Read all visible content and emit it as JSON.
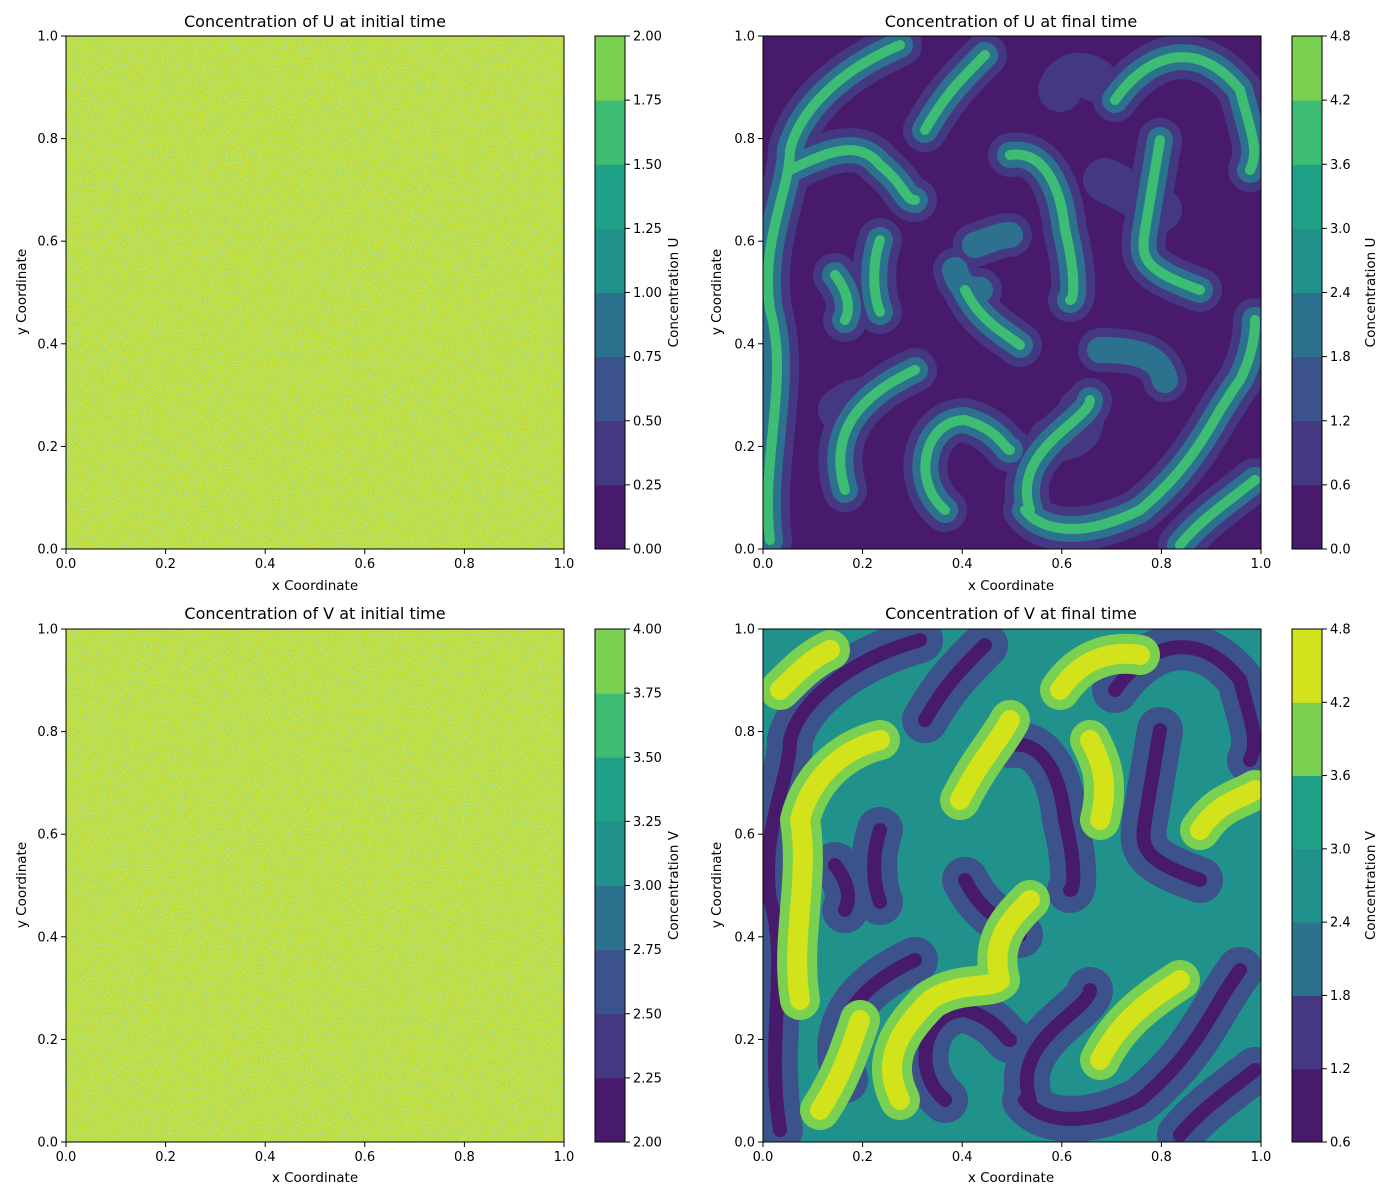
{
  "figure": {
    "layout": "2x2",
    "colormap": "viridis"
  },
  "colormap_colors": [
    "#481a6c",
    "#453882",
    "#3b528b",
    "#2c728e",
    "#21918c",
    "#1fa187",
    "#3dbc74",
    "#7ad151",
    "#d2e21b"
  ],
  "chart_data": [
    {
      "type": "heatmap",
      "title": "Concentration of U at initial time",
      "xlabel": "x Coordinate",
      "ylabel": "y Coordinate",
      "xlim": [
        0.0,
        1.0
      ],
      "ylim": [
        0.0,
        1.0
      ],
      "xticks": [
        "0.0",
        "0.2",
        "0.4",
        "0.6",
        "0.8",
        "1.0"
      ],
      "yticks": [
        "0.0",
        "0.2",
        "0.4",
        "0.6",
        "0.8",
        "1.0"
      ],
      "colorbar": {
        "label": "Concentration U",
        "range": [
          0.0,
          2.0
        ],
        "levels": [
          0.0,
          0.25,
          0.5,
          0.75,
          1.0,
          1.25,
          1.5,
          1.75,
          2.0
        ],
        "ticks": [
          "0.00",
          "0.25",
          "0.50",
          "0.75",
          "1.00",
          "1.25",
          "1.50",
          "1.75",
          "2.00"
        ]
      },
      "field_pattern": "random noise, values mostly 1.75-2.00 with scattered lower values"
    },
    {
      "type": "heatmap",
      "title": "Concentration of U at final time",
      "xlabel": "x Coordinate",
      "ylabel": "y Coordinate",
      "xlim": [
        0.0,
        1.0
      ],
      "ylim": [
        0.0,
        1.0
      ],
      "xticks": [
        "0.0",
        "0.2",
        "0.4",
        "0.6",
        "0.8",
        "1.0"
      ],
      "yticks": [
        "0.0",
        "0.2",
        "0.4",
        "0.6",
        "0.8",
        "1.0"
      ],
      "colorbar": {
        "label": "Concentration U",
        "range": [
          0.0,
          4.8
        ],
        "levels": [
          0.0,
          0.6,
          1.2,
          1.8,
          2.4,
          3.0,
          3.6,
          4.2,
          4.8
        ],
        "ticks": [
          "0.0",
          "0.6",
          "1.2",
          "1.8",
          "2.4",
          "3.0",
          "3.6",
          "4.2",
          "4.8"
        ]
      },
      "field_pattern": "thin curved stripes (labyrinth) on a low background"
    },
    {
      "type": "heatmap",
      "title": "Concentration of V at initial time",
      "xlabel": "x Coordinate",
      "ylabel": "y Coordinate",
      "xlim": [
        0.0,
        1.0
      ],
      "ylim": [
        0.0,
        1.0
      ],
      "xticks": [
        "0.0",
        "0.2",
        "0.4",
        "0.6",
        "0.8",
        "1.0"
      ],
      "yticks": [
        "0.0",
        "0.2",
        "0.4",
        "0.6",
        "0.8",
        "1.0"
      ],
      "colorbar": {
        "label": "Concentration V",
        "range": [
          2.0,
          4.0
        ],
        "levels": [
          2.0,
          2.25,
          2.5,
          2.75,
          3.0,
          3.25,
          3.5,
          3.75,
          4.0
        ],
        "ticks": [
          "2.00",
          "2.25",
          "2.50",
          "2.75",
          "3.00",
          "3.25",
          "3.50",
          "3.75",
          "4.00"
        ]
      },
      "field_pattern": "random noise, values mostly 3.75-4.00 with scattered lower values"
    },
    {
      "type": "heatmap",
      "title": "Concentration of V at final time",
      "xlabel": "x Coordinate",
      "ylabel": "y Coordinate",
      "xlim": [
        0.0,
        1.0
      ],
      "ylim": [
        0.0,
        1.0
      ],
      "xticks": [
        "0.0",
        "0.2",
        "0.4",
        "0.6",
        "0.8",
        "1.0"
      ],
      "yticks": [
        "0.0",
        "0.2",
        "0.4",
        "0.6",
        "0.8",
        "1.0"
      ],
      "colorbar": {
        "label": "Concentration V",
        "range": [
          0.6,
          4.8
        ],
        "levels": [
          0.6,
          1.2,
          1.8,
          2.4,
          3.0,
          3.6,
          4.2,
          4.8
        ],
        "ticks": [
          "0.6",
          "1.2",
          "1.8",
          "2.4",
          "3.0",
          "3.6",
          "4.2",
          "4.8"
        ]
      },
      "field_pattern": "wide labyrinth bands spanning all levels"
    }
  ]
}
